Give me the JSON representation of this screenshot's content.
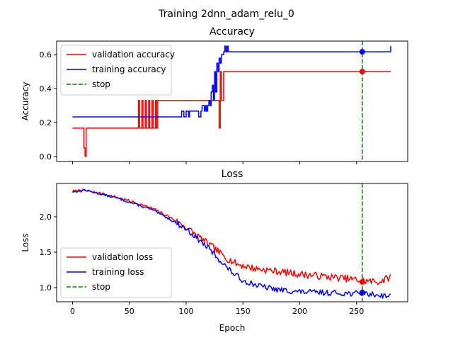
{
  "suptitle": "Training 2dnn_adam_relu_0",
  "chart_data": [
    {
      "type": "line",
      "title": "Accuracy",
      "xlabel": "",
      "ylabel": "Accuracy",
      "xlim": [
        -14,
        295
      ],
      "ylim": [
        -0.03,
        0.68
      ],
      "xticks": [
        0,
        50,
        100,
        150,
        200,
        250
      ],
      "xtick_labels_shown": false,
      "yticks": [
        0.0,
        0.2,
        0.4,
        0.6
      ],
      "ytick_labels": [
        "0.0",
        "0.2",
        "0.4",
        "0.6"
      ],
      "legend_position": "upper left",
      "stop_epoch": 255,
      "series": [
        {
          "name": "validation accuracy",
          "color": "#ff0000",
          "points": [
            [
              0,
              0.167
            ],
            [
              9,
              0.167
            ],
            [
              10,
              0.05
            ],
            [
              11,
              0.0
            ],
            [
              12,
              0.167
            ],
            [
              57,
              0.167
            ],
            [
              58,
              0.33
            ],
            [
              59,
              0.167
            ],
            [
              61,
              0.33
            ],
            [
              62,
              0.167
            ],
            [
              64,
              0.33
            ],
            [
              65,
              0.167
            ],
            [
              67,
              0.33
            ],
            [
              68,
              0.167
            ],
            [
              70,
              0.33
            ],
            [
              71,
              0.167
            ],
            [
              73,
              0.33
            ],
            [
              74,
              0.167
            ],
            [
              75,
              0.33
            ],
            [
              128,
              0.33
            ],
            [
              129,
              0.167
            ],
            [
              130,
              0.5
            ],
            [
              131,
              0.33
            ],
            [
              133,
              0.5
            ],
            [
              280,
              0.5
            ]
          ],
          "marker": [
            255,
            0.5
          ]
        },
        {
          "name": "training accuracy",
          "color": "#0000ff",
          "points": [
            [
              0,
              0.233
            ],
            [
              95,
              0.233
            ],
            [
              96,
              0.267
            ],
            [
              98,
              0.233
            ],
            [
              100,
              0.267
            ],
            [
              102,
              0.233
            ],
            [
              103,
              0.267
            ],
            [
              110,
              0.267
            ],
            [
              111,
              0.233
            ],
            [
              113,
              0.267
            ],
            [
              114,
              0.3
            ],
            [
              116,
              0.267
            ],
            [
              117,
              0.3
            ],
            [
              118,
              0.267
            ],
            [
              119,
              0.3
            ],
            [
              120,
              0.33
            ],
            [
              121,
              0.3
            ],
            [
              122,
              0.38
            ],
            [
              123,
              0.42
            ],
            [
              124,
              0.33
            ],
            [
              125,
              0.5
            ],
            [
              126,
              0.38
            ],
            [
              127,
              0.55
            ],
            [
              128,
              0.5
            ],
            [
              129,
              0.58
            ],
            [
              130,
              0.55
            ],
            [
              131,
              0.6
            ],
            [
              133,
              0.617
            ],
            [
              134,
              0.65
            ],
            [
              135,
              0.617
            ],
            [
              136,
              0.65
            ],
            [
              137,
              0.617
            ],
            [
              279,
              0.617
            ],
            [
              280,
              0.65
            ]
          ],
          "marker": [
            255,
            0.617
          ]
        },
        {
          "name": "stop",
          "color": "#008000",
          "style": "dashed",
          "x": 255
        }
      ]
    },
    {
      "type": "line",
      "title": "Loss",
      "xlabel": "Epoch",
      "ylabel": "Loss",
      "xlim": [
        -14,
        295
      ],
      "ylim": [
        0.8,
        2.47
      ],
      "xticks": [
        0,
        50,
        100,
        150,
        200,
        250
      ],
      "xtick_labels": [
        "0",
        "50",
        "100",
        "150",
        "200",
        "250"
      ],
      "yticks": [
        1.0,
        1.5,
        2.0
      ],
      "ytick_labels": [
        "1.0",
        "1.5",
        "2.0"
      ],
      "legend_position": "lower left",
      "stop_epoch": 255,
      "series": [
        {
          "name": "validation loss",
          "color": "#ff0000",
          "anchors": [
            [
              0,
              2.36
            ],
            [
              10,
              2.37
            ],
            [
              25,
              2.33
            ],
            [
              40,
              2.27
            ],
            [
              55,
              2.2
            ],
            [
              70,
              2.12
            ],
            [
              85,
              2.0
            ],
            [
              100,
              1.85
            ],
            [
              115,
              1.67
            ],
            [
              125,
              1.55
            ],
            [
              135,
              1.42
            ],
            [
              145,
              1.33
            ],
            [
              160,
              1.27
            ],
            [
              180,
              1.23
            ],
            [
              200,
              1.19
            ],
            [
              220,
              1.16
            ],
            [
              240,
              1.13
            ],
            [
              255,
              1.1
            ],
            [
              270,
              1.08
            ],
            [
              280,
              1.15
            ]
          ],
          "noise_amplitude": 0.05,
          "noise_start": 90,
          "seed": 7,
          "marker": [
            255,
            1.08
          ]
        },
        {
          "name": "training loss",
          "color": "#0000ff",
          "anchors": [
            [
              0,
              2.35
            ],
            [
              10,
              2.38
            ],
            [
              25,
              2.32
            ],
            [
              40,
              2.26
            ],
            [
              55,
              2.18
            ],
            [
              70,
              2.1
            ],
            [
              85,
              1.97
            ],
            [
              100,
              1.83
            ],
            [
              110,
              1.69
            ],
            [
              120,
              1.55
            ],
            [
              130,
              1.38
            ],
            [
              140,
              1.22
            ],
            [
              150,
              1.1
            ],
            [
              165,
              1.02
            ],
            [
              180,
              0.97
            ],
            [
              200,
              0.94
            ],
            [
              220,
              0.93
            ],
            [
              240,
              0.92
            ],
            [
              260,
              0.91
            ],
            [
              280,
              0.88
            ]
          ],
          "noise_amplitude": 0.04,
          "noise_start": 90,
          "seed": 13,
          "marker": [
            255,
            0.93
          ]
        },
        {
          "name": "stop",
          "color": "#008000",
          "style": "dashed",
          "x": 255
        }
      ]
    }
  ]
}
